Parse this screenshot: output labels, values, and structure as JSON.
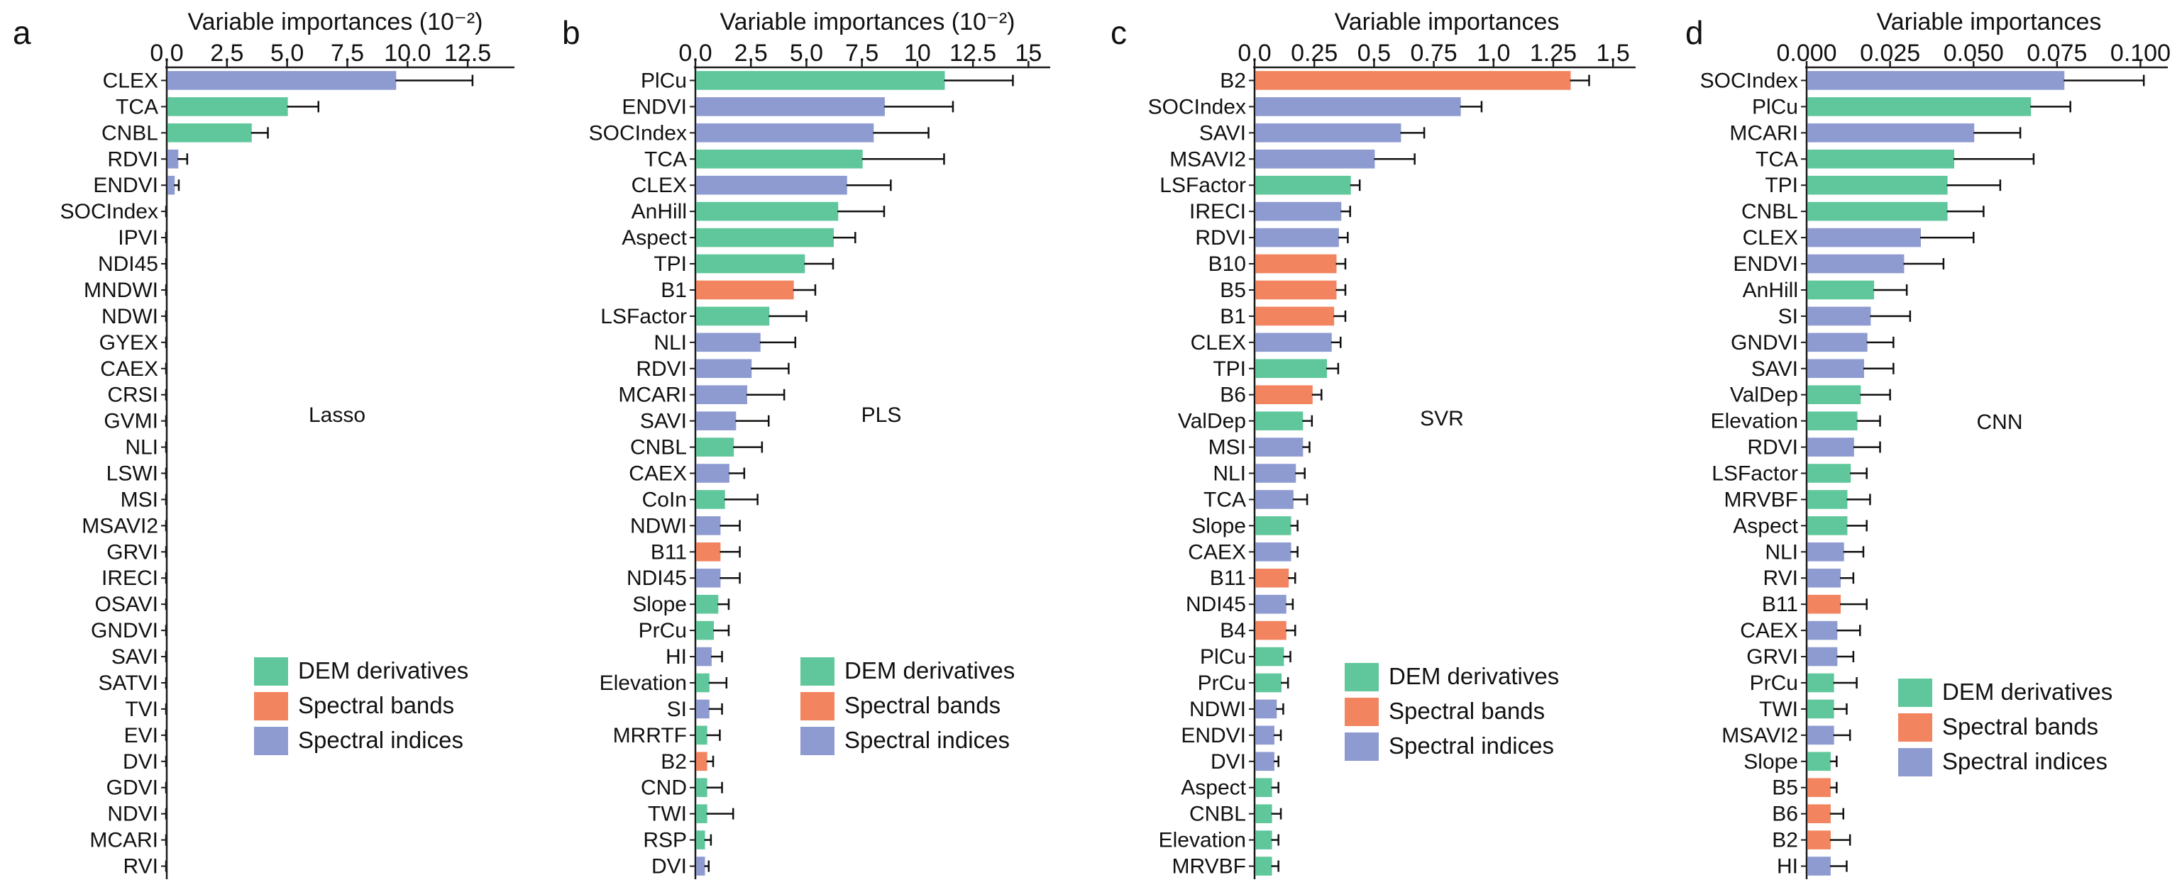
{
  "figure": {
    "colors": {
      "DEM derivatives": "#5fc79b",
      "Spectral bands": "#f2845f",
      "Spectral indices": "#8e9bd1",
      "axis": "#1a1a1a",
      "error": "#111111"
    },
    "legend": [
      "DEM derivatives",
      "Spectral bands",
      "Spectral indices"
    ]
  },
  "chart_data": [
    {
      "panel": "a",
      "type": "bar",
      "orientation": "horizontal",
      "model": "Lasso",
      "xlabel": "Variable importances (10⁻²)",
      "xlim": [
        0,
        14
      ],
      "xticks": [
        0.0,
        2.5,
        5.0,
        7.5,
        10.0,
        12.5
      ],
      "tick_labels": [
        "0.0",
        "2.5",
        "5.0",
        "7.5",
        "10.0",
        "12.5"
      ],
      "legend_position": "bottom-right",
      "categories": [
        "CLEX",
        "TCA",
        "CNBL",
        "RDVI",
        "ENDVI",
        "SOCIndex",
        "IPVI",
        "NDI45",
        "MNDWI",
        "NDWI",
        "GYEX",
        "CAEX",
        "CRSI",
        "GVMI",
        "NLI",
        "LSWI",
        "MSI",
        "MSAVI2",
        "GRVI",
        "IRECI",
        "OSAVI",
        "GNDVI",
        "SAVI",
        "SATVI",
        "TVI",
        "EVI",
        "DVI",
        "GDVI",
        "NDVI",
        "MCARI",
        "RVI"
      ],
      "groups": [
        "Spectral indices",
        "DEM derivatives",
        "DEM derivatives",
        "Spectral indices",
        "Spectral indices",
        "Spectral indices",
        "Spectral indices",
        "Spectral indices",
        "Spectral indices",
        "Spectral indices",
        "Spectral indices",
        "Spectral indices",
        "Spectral indices",
        "Spectral indices",
        "Spectral indices",
        "Spectral indices",
        "Spectral indices",
        "Spectral indices",
        "Spectral indices",
        "Spectral indices",
        "Spectral indices",
        "Spectral indices",
        "Spectral indices",
        "Spectral indices",
        "Spectral indices",
        "Spectral indices",
        "Spectral indices",
        "Spectral indices",
        "Spectral indices",
        "Spectral indices",
        "Spectral indices"
      ],
      "values": [
        9.5,
        5.0,
        3.5,
        0.45,
        0.3,
        0,
        0,
        0,
        0,
        0,
        0,
        0,
        0,
        0,
        0,
        0,
        0,
        0,
        0,
        0,
        0,
        0,
        0,
        0,
        0,
        0,
        0,
        0,
        0,
        0,
        0
      ],
      "errors": [
        3.2,
        1.3,
        0.7,
        0.4,
        0.2,
        0,
        0,
        0,
        0,
        0,
        0,
        0,
        0,
        0,
        0,
        0,
        0,
        0,
        0,
        0,
        0,
        0,
        0,
        0,
        0,
        0,
        0,
        0,
        0,
        0,
        0
      ]
    },
    {
      "panel": "b",
      "type": "bar",
      "orientation": "horizontal",
      "model": "PLS",
      "xlabel": "Variable importances (10⁻²)",
      "xlim": [
        0,
        15.5
      ],
      "xticks": [
        0.0,
        2.5,
        5.0,
        7.5,
        10.0,
        12.5,
        15.0
      ],
      "tick_labels": [
        "0.0",
        "2.5",
        "5.0",
        "7.5",
        "10",
        "12.5",
        "15"
      ],
      "legend_position": "bottom-right",
      "categories": [
        "PlCu",
        "ENDVI",
        "SOCIndex",
        "TCA",
        "CLEX",
        "AnHill",
        "Aspect",
        "TPI",
        "B1",
        "LSFactor",
        "NLI",
        "RDVI",
        "MCARI",
        "SAVI",
        "CNBL",
        "CAEX",
        "CoIn",
        "NDWI",
        "B11",
        "NDI45",
        "Slope",
        "PrCu",
        "HI",
        "Elevation",
        "SI",
        "MRRTF",
        "B2",
        "CND",
        "TWI",
        "RSP",
        "DVI"
      ],
      "groups": [
        "DEM derivatives",
        "Spectral indices",
        "Spectral indices",
        "DEM derivatives",
        "Spectral indices",
        "DEM derivatives",
        "DEM derivatives",
        "DEM derivatives",
        "Spectral bands",
        "DEM derivatives",
        "Spectral indices",
        "Spectral indices",
        "Spectral indices",
        "Spectral indices",
        "DEM derivatives",
        "Spectral indices",
        "DEM derivatives",
        "Spectral indices",
        "Spectral bands",
        "Spectral indices",
        "DEM derivatives",
        "DEM derivatives",
        "Spectral indices",
        "DEM derivatives",
        "Spectral indices",
        "DEM derivatives",
        "Spectral bands",
        "DEM derivatives",
        "DEM derivatives",
        "DEM derivatives",
        "Spectral indices"
      ],
      "values": [
        11.2,
        8.5,
        8.0,
        7.5,
        6.8,
        6.4,
        6.2,
        4.9,
        4.4,
        3.3,
        2.9,
        2.5,
        2.3,
        1.8,
        1.7,
        1.5,
        1.3,
        1.1,
        1.1,
        1.1,
        1.0,
        0.8,
        0.7,
        0.6,
        0.6,
        0.5,
        0.5,
        0.5,
        0.5,
        0.4,
        0.4
      ],
      "errors": [
        3.1,
        3.1,
        2.5,
        3.7,
        2.0,
        2.1,
        1.0,
        1.3,
        1.0,
        1.7,
        1.6,
        1.7,
        1.7,
        1.5,
        1.3,
        0.7,
        1.5,
        0.9,
        0.9,
        0.9,
        0.5,
        0.7,
        0.5,
        0.8,
        0.6,
        0.6,
        0.3,
        0.7,
        1.2,
        0.3,
        0.2
      ]
    },
    {
      "panel": "c",
      "type": "bar",
      "orientation": "horizontal",
      "model": "SVR",
      "xlabel": "Variable importances",
      "xlim": [
        0,
        1.55
      ],
      "xticks": [
        0.0,
        0.25,
        0.5,
        0.75,
        1.0,
        1.25,
        1.5
      ],
      "tick_labels": [
        "0.0",
        "0.25",
        "0.5",
        "0.75",
        "1.0",
        "1.25",
        "1.5"
      ],
      "legend_position": "bottom-right",
      "categories": [
        "B2",
        "SOCIndex",
        "SAVI",
        "MSAVI2",
        "LSFactor",
        "IRECI",
        "RDVI",
        "B10",
        "B5",
        "B1",
        "CLEX",
        "TPI",
        "B6",
        "ValDep",
        "MSI",
        "NLI",
        "TCA",
        "Slope",
        "CAEX",
        "B11",
        "NDI45",
        "B4",
        "PlCu",
        "PrCu",
        "NDWI",
        "ENDVI",
        "DVI",
        "Aspect",
        "CNBL",
        "Elevation",
        "MRVBF"
      ],
      "groups": [
        "Spectral bands",
        "Spectral indices",
        "Spectral indices",
        "Spectral indices",
        "DEM derivatives",
        "Spectral indices",
        "Spectral indices",
        "Spectral bands",
        "Spectral bands",
        "Spectral bands",
        "Spectral indices",
        "DEM derivatives",
        "Spectral bands",
        "DEM derivatives",
        "Spectral indices",
        "Spectral indices",
        "Spectral indices",
        "DEM derivatives",
        "Spectral indices",
        "Spectral bands",
        "Spectral indices",
        "Spectral bands",
        "DEM derivatives",
        "DEM derivatives",
        "Spectral indices",
        "Spectral indices",
        "Spectral indices",
        "DEM derivatives",
        "DEM derivatives",
        "DEM derivatives",
        "DEM derivatives"
      ],
      "values": [
        1.32,
        0.86,
        0.61,
        0.5,
        0.4,
        0.36,
        0.35,
        0.34,
        0.34,
        0.33,
        0.32,
        0.3,
        0.24,
        0.2,
        0.2,
        0.17,
        0.16,
        0.15,
        0.15,
        0.14,
        0.13,
        0.13,
        0.12,
        0.11,
        0.09,
        0.08,
        0.08,
        0.07,
        0.07,
        0.07,
        0.07
      ],
      "errors": [
        0.08,
        0.09,
        0.1,
        0.17,
        0.04,
        0.04,
        0.04,
        0.04,
        0.04,
        0.05,
        0.04,
        0.05,
        0.04,
        0.04,
        0.03,
        0.04,
        0.06,
        0.03,
        0.03,
        0.03,
        0.03,
        0.04,
        0.03,
        0.03,
        0.03,
        0.03,
        0.02,
        0.03,
        0.04,
        0.03,
        0.03
      ]
    },
    {
      "panel": "d",
      "type": "bar",
      "orientation": "horizontal",
      "model": "CNN",
      "xlabel": "Variable importances",
      "xlim": [
        0,
        0.105
      ],
      "xticks": [
        0.0,
        0.025,
        0.05,
        0.075,
        0.1
      ],
      "tick_labels": [
        "0.000",
        "0.025",
        "0.050",
        "0.075",
        "0.100"
      ],
      "legend_position": "bottom-right",
      "categories": [
        "SOCIndex",
        "PlCu",
        "MCARI",
        "TCA",
        "TPI",
        "CNBL",
        "CLEX",
        "ENDVI",
        "AnHill",
        "SI",
        "GNDVI",
        "SAVI",
        "ValDep",
        "Elevation",
        "RDVI",
        "LSFactor",
        "MRVBF",
        "Aspect",
        "NLI",
        "RVI",
        "B11",
        "CAEX",
        "GRVI",
        "PrCu",
        "TWI",
        "MSAVI2",
        "Slope",
        "B5",
        "B6",
        "B2",
        "HI"
      ],
      "groups": [
        "Spectral indices",
        "DEM derivatives",
        "Spectral indices",
        "DEM derivatives",
        "DEM derivatives",
        "DEM derivatives",
        "Spectral indices",
        "Spectral indices",
        "DEM derivatives",
        "Spectral indices",
        "Spectral indices",
        "Spectral indices",
        "DEM derivatives",
        "DEM derivatives",
        "Spectral indices",
        "DEM derivatives",
        "DEM derivatives",
        "DEM derivatives",
        "Spectral indices",
        "Spectral indices",
        "Spectral bands",
        "Spectral indices",
        "Spectral indices",
        "DEM derivatives",
        "DEM derivatives",
        "Spectral indices",
        "DEM derivatives",
        "Spectral bands",
        "Spectral bands",
        "Spectral bands",
        "Spectral indices"
      ],
      "values": [
        0.077,
        0.067,
        0.05,
        0.044,
        0.042,
        0.042,
        0.034,
        0.029,
        0.02,
        0.019,
        0.018,
        0.017,
        0.016,
        0.015,
        0.014,
        0.013,
        0.012,
        0.012,
        0.011,
        0.01,
        0.01,
        0.009,
        0.009,
        0.008,
        0.008,
        0.008,
        0.007,
        0.007,
        0.007,
        0.007,
        0.007
      ],
      "errors": [
        0.024,
        0.012,
        0.014,
        0.024,
        0.016,
        0.011,
        0.016,
        0.012,
        0.01,
        0.012,
        0.008,
        0.009,
        0.009,
        0.007,
        0.008,
        0.005,
        0.007,
        0.006,
        0.006,
        0.004,
        0.008,
        0.007,
        0.005,
        0.007,
        0.004,
        0.005,
        0.002,
        0.002,
        0.004,
        0.006,
        0.005
      ]
    }
  ]
}
